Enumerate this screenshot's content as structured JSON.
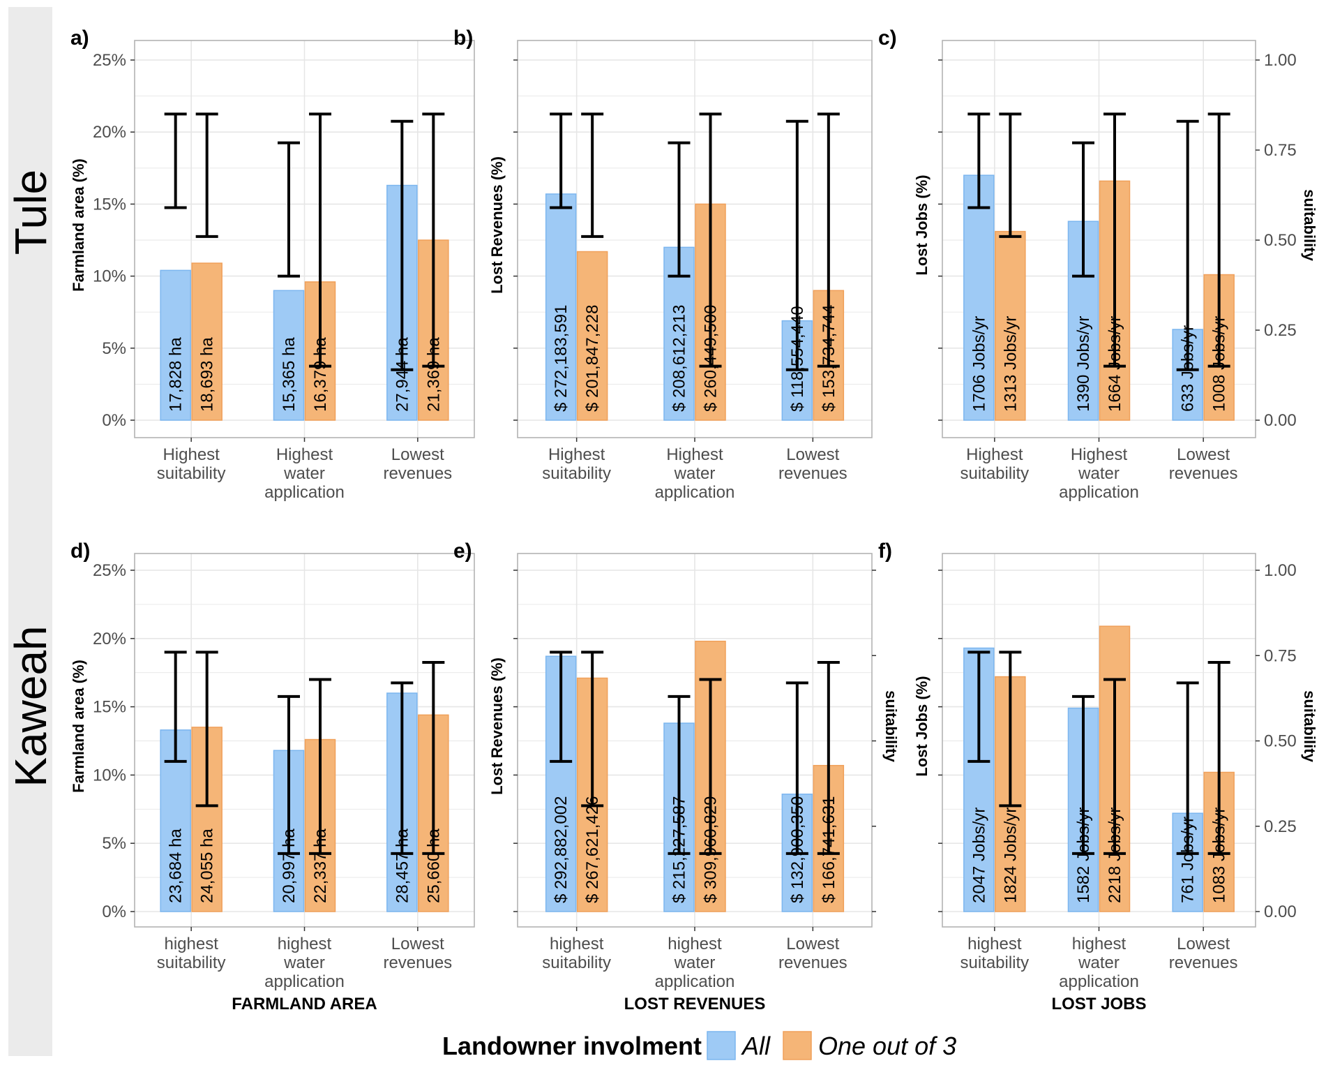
{
  "colors": {
    "all": "#9ecaf5",
    "all_edge": "#7cb6ef",
    "one_of_three": "#f5b577",
    "one_of_three_edge": "#f0a05a",
    "strip_bg": "#ebebeb",
    "grid": "#e6e6e6",
    "frame": "#b3b3b3"
  },
  "rows": [
    {
      "label": "Tule"
    },
    {
      "label": "Kaweah"
    }
  ],
  "legend": {
    "title": "Landowner involment",
    "items": [
      {
        "key": "all",
        "label": "All"
      },
      {
        "key": "one_of_three",
        "label": "One out of 3"
      }
    ]
  },
  "chart_data": [
    {
      "panel": "a)",
      "type": "bar",
      "row": 0,
      "col": 0,
      "ylabel": "Farmland area (%)",
      "xtitle": "",
      "y_ticks": [
        "0%",
        "5%",
        "10%",
        "15%",
        "20%",
        "25%"
      ],
      "ylim": [
        0,
        25
      ],
      "right_axis": null,
      "categories": [
        [
          "Highest",
          "suitability"
        ],
        [
          "Highest",
          "water",
          "application"
        ],
        [
          "Lowest",
          "revenues"
        ]
      ],
      "series": [
        {
          "name": "All",
          "values": [
            10.4,
            9.0,
            16.3
          ],
          "labels": [
            "17,828 ha",
            "15,365 ha",
            "27,944 ha"
          ],
          "err_suit": [
            [
              0.59,
              0.85
            ],
            [
              0.4,
              0.77
            ],
            [
              0.14,
              0.83
            ]
          ]
        },
        {
          "name": "One out of 3",
          "values": [
            10.9,
            9.6,
            12.5
          ],
          "labels": [
            "18,693 ha",
            "16,379 ha",
            "21,369 ha"
          ],
          "err_suit": [
            [
              0.51,
              0.85
            ],
            [
              0.15,
              0.85
            ],
            [
              0.15,
              0.85
            ]
          ]
        }
      ]
    },
    {
      "panel": "b)",
      "type": "bar",
      "row": 0,
      "col": 1,
      "ylabel": "Lost Revenues (%)",
      "xtitle": "",
      "y_ticks": [],
      "ylim": [
        0,
        25
      ],
      "right_axis": null,
      "categories": [
        [
          "Highest",
          "suitability"
        ],
        [
          "Highest",
          "water",
          "application"
        ],
        [
          "Lowest",
          "revenues"
        ]
      ],
      "series": [
        {
          "name": "All",
          "values": [
            15.7,
            12.0,
            6.9
          ],
          "labels": [
            "$ 272,183,591",
            "$ 208,612,213",
            "$ 118,554,440"
          ],
          "err_suit": [
            [
              0.59,
              0.85
            ],
            [
              0.4,
              0.77
            ],
            [
              0.14,
              0.83
            ]
          ]
        },
        {
          "name": "One out of 3",
          "values": [
            11.7,
            15.0,
            9.0
          ],
          "labels": [
            "$ 201,847,228",
            "$ 260,449,500",
            "$ 153,734,744"
          ],
          "err_suit": [
            [
              0.51,
              0.85
            ],
            [
              0.15,
              0.85
            ],
            [
              0.15,
              0.85
            ]
          ]
        }
      ]
    },
    {
      "panel": "c)",
      "type": "bar",
      "row": 0,
      "col": 2,
      "ylabel": "Lost Jobs (%)",
      "xtitle": "",
      "y_ticks": [],
      "ylim": [
        0,
        25
      ],
      "right_axis": {
        "label": "suitability",
        "ticks": [
          "0.00",
          "0.25",
          "0.50",
          "0.75",
          "1.00"
        ]
      },
      "categories": [
        [
          "Highest",
          "suitability"
        ],
        [
          "Highest",
          "water",
          "application"
        ],
        [
          "Lowest",
          "revenues"
        ]
      ],
      "series": [
        {
          "name": "All",
          "values": [
            17.0,
            13.8,
            6.3
          ],
          "labels": [
            "1706 Jobs/yr",
            "1390 Jobs/yr",
            "633 Jobs/yr"
          ],
          "err_suit": [
            [
              0.59,
              0.85
            ],
            [
              0.4,
              0.77
            ],
            [
              0.14,
              0.83
            ]
          ]
        },
        {
          "name": "One out of 3",
          "values": [
            13.1,
            16.6,
            10.1
          ],
          "labels": [
            "1313 Jobs/yr",
            "1664 Jobs/yr",
            "1008 Jobs/yr"
          ],
          "err_suit": [
            [
              0.51,
              0.85
            ],
            [
              0.15,
              0.85
            ],
            [
              0.15,
              0.85
            ]
          ]
        }
      ]
    },
    {
      "panel": "d)",
      "type": "bar",
      "row": 1,
      "col": 0,
      "ylabel": "Farmland area (%)",
      "xtitle": "FARMLAND AREA",
      "y_ticks": [
        "0%",
        "5%",
        "10%",
        "15%",
        "20%",
        "25%"
      ],
      "ylim": [
        0,
        25
      ],
      "right_axis": null,
      "categories": [
        [
          "highest",
          "suitability"
        ],
        [
          "highest",
          "water",
          "application"
        ],
        [
          "Lowest",
          "revenues"
        ]
      ],
      "series": [
        {
          "name": "All",
          "values": [
            13.3,
            11.8,
            16.0
          ],
          "labels": [
            "23,684 ha",
            "20,997 ha",
            "28,457 ha"
          ],
          "err_suit": [
            [
              0.44,
              0.76
            ],
            [
              0.17,
              0.63
            ],
            [
              0.17,
              0.67
            ]
          ]
        },
        {
          "name": "One out of 3",
          "values": [
            13.5,
            12.6,
            14.4
          ],
          "labels": [
            "24,055 ha",
            "22,337 ha",
            "25,660 ha"
          ],
          "err_suit": [
            [
              0.31,
              0.76
            ],
            [
              0.17,
              0.68
            ],
            [
              0.17,
              0.73
            ]
          ]
        }
      ]
    },
    {
      "panel": "e)",
      "type": "bar",
      "row": 1,
      "col": 1,
      "ylabel": "Lost Revenues (%)",
      "xtitle": "LOST REVENUES",
      "y_ticks": [],
      "ylim": [
        0,
        25
      ],
      "right_axis": {
        "label": "suitability",
        "ticks": []
      },
      "categories": [
        [
          "highest",
          "suitability"
        ],
        [
          "highest",
          "water",
          "application"
        ],
        [
          "Lowest",
          "revenues"
        ]
      ],
      "series": [
        {
          "name": "All",
          "values": [
            18.7,
            13.8,
            8.6
          ],
          "labels": [
            "$ 292,882,002",
            "$ 215,227,587",
            "$ 132,900,350"
          ],
          "err_suit": [
            [
              0.44,
              0.76
            ],
            [
              0.17,
              0.63
            ],
            [
              0.17,
              0.67
            ]
          ]
        },
        {
          "name": "One out of 3",
          "values": [
            17.1,
            19.8,
            10.7
          ],
          "labels": [
            "$ 267,621,426",
            "$ 309,960,829",
            "$ 166,741,631"
          ],
          "err_suit": [
            [
              0.31,
              0.76
            ],
            [
              0.17,
              0.68
            ],
            [
              0.17,
              0.73
            ]
          ]
        }
      ]
    },
    {
      "panel": "f)",
      "type": "bar",
      "row": 1,
      "col": 2,
      "ylabel": "Lost Jobs (%)",
      "xtitle": "LOST JOBS",
      "y_ticks": [],
      "ylim": [
        0,
        25
      ],
      "right_axis": {
        "label": "suitability",
        "ticks": [
          "0.00",
          "0.25",
          "0.50",
          "0.75",
          "1.00"
        ]
      },
      "categories": [
        [
          "highest",
          "suitability"
        ],
        [
          "highest",
          "water",
          "application"
        ],
        [
          "Lowest",
          "revenues"
        ]
      ],
      "series": [
        {
          "name": "All",
          "values": [
            19.3,
            14.9,
            7.2
          ],
          "labels": [
            "2047 Jobs/yr",
            "1582 Jobs/yr",
            "761 Jobs/yr"
          ],
          "err_suit": [
            [
              0.44,
              0.76
            ],
            [
              0.17,
              0.63
            ],
            [
              0.17,
              0.67
            ]
          ]
        },
        {
          "name": "One out of 3",
          "values": [
            17.2,
            20.9,
            10.2
          ],
          "labels": [
            "1824 Jobs/yr",
            "2218 Jobs/yr",
            "1083 Jobs/yr"
          ],
          "err_suit": [
            [
              0.31,
              0.76
            ],
            [
              0.17,
              0.68
            ],
            [
              0.17,
              0.73
            ]
          ]
        }
      ]
    }
  ]
}
